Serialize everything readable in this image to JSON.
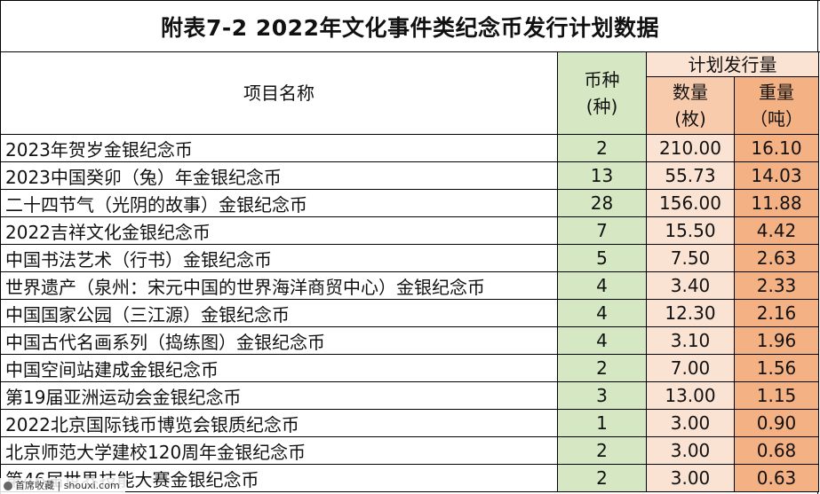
{
  "title": "附表7-2  2022年文化事件类纪念币发行计划数据",
  "headers": {
    "name": "项目名称",
    "kind_line1": "币种",
    "kind_line2": "(种)",
    "plan": "计划发行量",
    "qty_line1": "数量",
    "qty_line2": "(枚)",
    "wt_line1": "重量",
    "wt_line2": "（吨）"
  },
  "rows": [
    {
      "name": "2023年贺岁金银纪念币",
      "kinds": "2",
      "qty": "210.00",
      "weight": "16.10"
    },
    {
      "name": "2023中国癸卯（兔）年金银纪念币",
      "kinds": "13",
      "qty": "55.73",
      "weight": "14.03"
    },
    {
      "name": "二十四节气（光阴的故事）金银纪念币",
      "kinds": "28",
      "qty": "156.00",
      "weight": "11.88"
    },
    {
      "name": "2022吉祥文化金银纪念币",
      "kinds": "7",
      "qty": "15.50",
      "weight": "4.42"
    },
    {
      "name": "中国书法艺术（行书）金银纪念币",
      "kinds": "5",
      "qty": "7.50",
      "weight": "2.63"
    },
    {
      "name": "世界遗产（泉州：宋元中国的世界海洋商贸中心）金银纪念币",
      "kinds": "4",
      "qty": "3.40",
      "weight": "2.33"
    },
    {
      "name": "中国国家公园（三江源）金银纪念币",
      "kinds": "4",
      "qty": "12.30",
      "weight": "2.16"
    },
    {
      "name": "中国古代名画系列（捣练图）金银纪念币",
      "kinds": "4",
      "qty": "3.10",
      "weight": "1.96"
    },
    {
      "name": "中国空间站建成金银纪念币",
      "kinds": "2",
      "qty": "7.00",
      "weight": "1.56"
    },
    {
      "name": "第19届亚洲运动会金银纪念币",
      "kinds": "3",
      "qty": "13.00",
      "weight": "1.15"
    },
    {
      "name": "2022北京国际钱币博览会银质纪念币",
      "kinds": "1",
      "qty": "3.00",
      "weight": "0.90"
    },
    {
      "name": "北京师范大学建校120周年金银纪念币",
      "kinds": "2",
      "qty": "3.00",
      "weight": "0.68"
    },
    {
      "name": "第46届世界技能大赛金银纪念币",
      "kinds": "2",
      "qty": "3.00",
      "weight": "0.63"
    }
  ],
  "watermark": {
    "icon": "bookmark-icon",
    "text": "首席收藏 | shouxi.com"
  }
}
